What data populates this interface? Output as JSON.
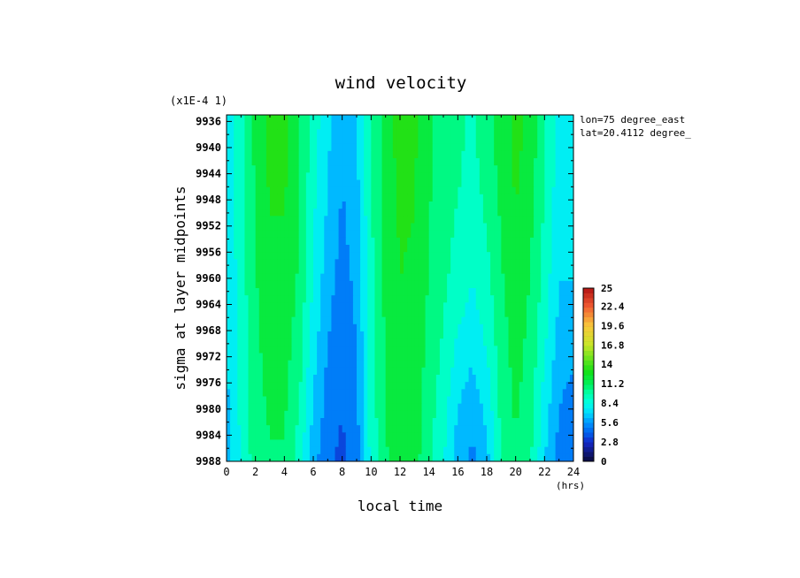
{
  "chart_data": {
    "type": "heatmap",
    "title": "wind velocity",
    "xlabel": "local time",
    "xunit": "(hrs)",
    "ylabel": "sigma at layer midpoints",
    "yscale_note": "(x1E-4 1)",
    "info": [
      "lon=75 degree_east",
      "lat=20.4112 degree_"
    ],
    "x_ticks": [
      "0",
      "2",
      "4",
      "6",
      "8",
      "10",
      "12",
      "14",
      "16",
      "18",
      "20",
      "22",
      "24"
    ],
    "y_ticks": [
      "9936",
      "9940",
      "9944",
      "9948",
      "9952",
      "9956",
      "9960",
      "9964",
      "9968",
      "9972",
      "9976",
      "9980",
      "9984",
      "9988"
    ],
    "xlim": [
      0,
      24
    ],
    "ylim": [
      9988,
      9935
    ],
    "colorbar": {
      "min": 0,
      "max": 25,
      "labels": [
        "25",
        "22.4",
        "19.6",
        "16.8",
        "14",
        "11.2",
        "8.4",
        "5.6",
        "2.8",
        "0"
      ]
    },
    "x": [
      0,
      1,
      2,
      3,
      4,
      5,
      6,
      7,
      8,
      9,
      10,
      11,
      12,
      13,
      14,
      15,
      16,
      17,
      18,
      19,
      20,
      21,
      22,
      23,
      24
    ],
    "y": [
      9935,
      9940,
      9945,
      9950,
      9955,
      9960,
      9965,
      9970,
      9975,
      9980,
      9985,
      9988
    ],
    "z": [
      [
        7.5,
        9.5,
        11.5,
        13,
        13,
        11.5,
        9,
        7.5,
        5.8,
        6.8,
        9.8,
        12.0,
        13.0,
        12.8,
        11.5,
        10.5,
        10.0,
        9.5,
        10.5,
        11.8,
        13.0,
        12.0,
        10.0,
        7.8,
        7.5
      ],
      [
        7.5,
        9.5,
        11.5,
        13,
        13,
        11.5,
        9,
        7.2,
        5.8,
        6.8,
        9.8,
        12.0,
        13.0,
        12.8,
        11.5,
        10.5,
        10.0,
        9.5,
        10.5,
        11.8,
        13.0,
        12.0,
        10.0,
        7.8,
        7.5
      ],
      [
        7.4,
        9.4,
        11.4,
        12.8,
        12.8,
        11.4,
        8.8,
        7.0,
        5.6,
        6.6,
        9.7,
        11.9,
        12.9,
        12.7,
        11.4,
        10.4,
        9.9,
        9.3,
        10.3,
        11.6,
        12.8,
        11.8,
        9.8,
        7.6,
        7.4
      ],
      [
        7.3,
        9.3,
        11.3,
        12.6,
        12.6,
        11.3,
        8.6,
        6.8,
        5.4,
        6.4,
        9.6,
        11.8,
        12.8,
        12.6,
        11.3,
        10.3,
        9.7,
        9.1,
        10.0,
        11.4,
        12.6,
        11.6,
        9.6,
        7.4,
        7.3
      ],
      [
        7.2,
        9.2,
        11.2,
        12.4,
        12.4,
        11.2,
        8.4,
        6.5,
        5.2,
        6.2,
        9.5,
        11.7,
        12.7,
        12.5,
        11.2,
        10.2,
        9.5,
        8.8,
        9.7,
        11.2,
        12.4,
        11.4,
        9.4,
        7.2,
        7.2
      ],
      [
        7.1,
        9.1,
        11.1,
        12.2,
        12.2,
        11.0,
        8.2,
        6.2,
        5.0,
        6.0,
        9.4,
        11.6,
        12.6,
        12.4,
        11.1,
        10.1,
        9.2,
        8.4,
        9.4,
        11.0,
        12.2,
        11.2,
        9.2,
        7.0,
        7.0
      ],
      [
        7.0,
        9.0,
        11.0,
        12.0,
        12.0,
        10.8,
        8.0,
        5.9,
        4.8,
        5.8,
        9.3,
        11.5,
        12.5,
        12.3,
        11.0,
        9.9,
        8.8,
        8.0,
        9.0,
        10.8,
        12.0,
        11.0,
        9.0,
        6.8,
        6.5
      ],
      [
        6.9,
        8.9,
        10.9,
        11.8,
        11.8,
        10.6,
        7.6,
        5.6,
        4.6,
        5.6,
        9.2,
        11.4,
        12.4,
        12.2,
        10.8,
        9.6,
        8.2,
        7.4,
        8.6,
        10.6,
        11.8,
        10.8,
        8.6,
        6.4,
        6.0
      ],
      [
        6.8,
        8.8,
        10.8,
        11.6,
        11.6,
        10.2,
        7.2,
        5.3,
        4.4,
        5.4,
        9.1,
        11.3,
        12.3,
        12.1,
        10.6,
        9.3,
        7.6,
        6.8,
        8.0,
        10.4,
        11.6,
        10.6,
        8.2,
        6.0,
        5.5
      ],
      [
        6.7,
        8.7,
        10.7,
        11.4,
        11.4,
        9.8,
        6.8,
        5.0,
        4.2,
        5.2,
        9.0,
        11.2,
        12.2,
        12.0,
        10.4,
        9.0,
        7.0,
        6.2,
        7.4,
        10.2,
        11.4,
        10.4,
        7.8,
        5.6,
        5.0
      ],
      [
        6.6,
        8.6,
        10.6,
        11.2,
        11.2,
        9.4,
        6.4,
        4.7,
        4.0,
        5.0,
        8.9,
        11.1,
        12.1,
        11.9,
        10.2,
        8.7,
        6.5,
        5.6,
        6.8,
        10.0,
        11.2,
        10.2,
        7.4,
        5.2,
        4.6
      ],
      [
        6.5,
        8.5,
        10.5,
        11.0,
        11.0,
        9.0,
        6.0,
        4.5,
        3.8,
        4.8,
        8.8,
        11.0,
        12.0,
        11.8,
        10.0,
        8.5,
        6.2,
        5.2,
        6.4,
        9.8,
        11.0,
        10.0,
        7.0,
        5.0,
        4.3
      ]
    ]
  }
}
